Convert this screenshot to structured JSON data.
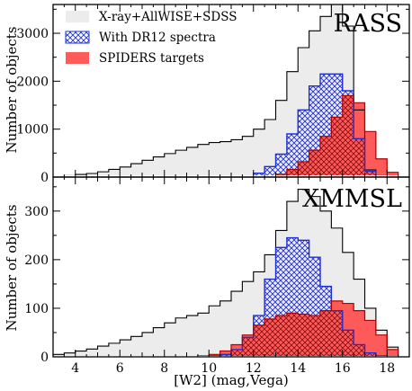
{
  "chart_data": [
    {
      "panel": "RASS",
      "type": "bar",
      "label": "RASS",
      "ylabel": "Number of objects",
      "ylim": [
        0,
        3600
      ],
      "yticks": [
        0,
        1000,
        2000,
        3000
      ],
      "xlim": [
        3,
        19
      ],
      "bin_width": 0.5,
      "bin_edges_start": 3,
      "series": [
        {
          "name": "X-ray+AllWISE+SDSS",
          "style": "filled-gray",
          "values": [
            0,
            30,
            55,
            75,
            110,
            160,
            210,
            280,
            350,
            420,
            490,
            560,
            620,
            680,
            720,
            740,
            780,
            850,
            1000,
            1200,
            1600,
            2200,
            2700,
            3050,
            3350,
            3600,
            3150,
            1400,
            150,
            30,
            0,
            0
          ]
        },
        {
          "name": "With DR12 spectra",
          "style": "hatched-blue",
          "values": [
            0,
            0,
            0,
            0,
            0,
            0,
            0,
            0,
            0,
            0,
            0,
            0,
            0,
            0,
            0,
            0,
            5,
            20,
            80,
            220,
            480,
            900,
            1400,
            1900,
            2150,
            2150,
            1800,
            800,
            120,
            20,
            0,
            0
          ]
        },
        {
          "name": "SPIDERS targets",
          "style": "filled-red",
          "values": [
            0,
            0,
            0,
            0,
            0,
            0,
            0,
            0,
            0,
            0,
            0,
            0,
            0,
            0,
            0,
            0,
            0,
            0,
            5,
            20,
            60,
            160,
            320,
            560,
            850,
            1250,
            1700,
            1550,
            950,
            380,
            100,
            20
          ]
        }
      ],
      "legend": [
        "X-ray+AllWISE+SDSS",
        "With DR12 spectra",
        "SPIDERS targets"
      ],
      "legend_position": "top-left"
    },
    {
      "panel": "XMMSL",
      "type": "bar",
      "label": "XMMSL",
      "ylabel": "Number of objects",
      "xlabel": "[W2] (mag,Vega)",
      "ylim": [
        0,
        370
      ],
      "yticks": [
        0,
        100,
        200,
        300
      ],
      "xlim": [
        3,
        19
      ],
      "xticks": [
        4,
        6,
        8,
        10,
        12,
        14,
        16,
        18
      ],
      "bin_width": 0.5,
      "bin_edges_start": 3,
      "series": [
        {
          "name": "X-ray+AllWISE+SDSS",
          "values": [
            5,
            8,
            12,
            16,
            22,
            28,
            35,
            42,
            50,
            60,
            70,
            80,
            85,
            90,
            105,
            115,
            135,
            155,
            175,
            210,
            260,
            320,
            345,
            330,
            300,
            265,
            215,
            160,
            100,
            55,
            20,
            0
          ]
        },
        {
          "name": "With DR12 spectra",
          "values": [
            0,
            0,
            0,
            0,
            0,
            0,
            0,
            0,
            0,
            0,
            0,
            0,
            0,
            0,
            2,
            5,
            15,
            40,
            85,
            160,
            225,
            245,
            240,
            205,
            145,
            95,
            55,
            25,
            8,
            2,
            0,
            0
          ]
        },
        {
          "name": "SPIDERS targets",
          "values": [
            0,
            0,
            0,
            0,
            0,
            0,
            0,
            0,
            0,
            0,
            0,
            0,
            0,
            2,
            5,
            12,
            25,
            45,
            65,
            78,
            85,
            90,
            88,
            85,
            95,
            115,
            110,
            95,
            75,
            45,
            15,
            0
          ]
        }
      ]
    }
  ]
}
